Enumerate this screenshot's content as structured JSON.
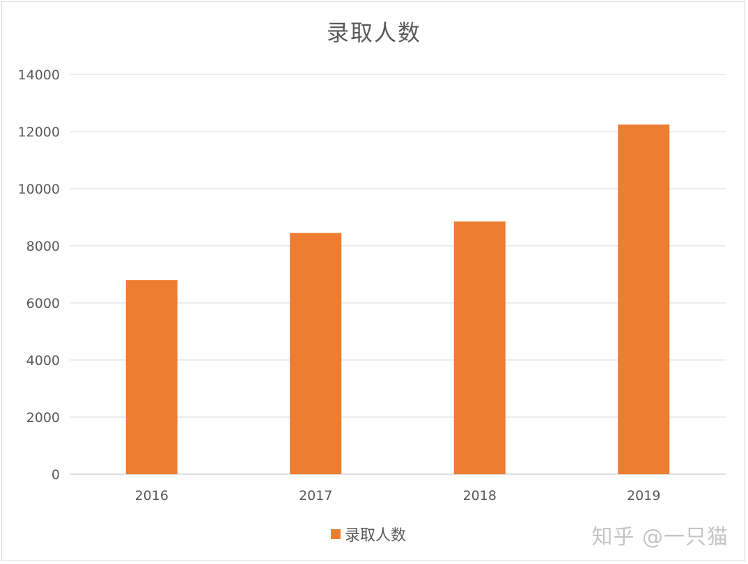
{
  "chart_data": {
    "type": "bar",
    "title": "录取人数",
    "categories": [
      "2016",
      "2017",
      "2018",
      "2019"
    ],
    "series": [
      {
        "name": "录取人数",
        "values": [
          6800,
          8450,
          8850,
          12250
        ],
        "color": "#ed7d31"
      }
    ],
    "ylim": [
      0,
      14000
    ],
    "yticks": [
      "0",
      "2000",
      "4000",
      "6000",
      "8000",
      "10000",
      "12000",
      "14000"
    ],
    "grid": true,
    "legend": "bottom"
  },
  "watermark": "知乎 @一只猫"
}
